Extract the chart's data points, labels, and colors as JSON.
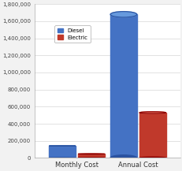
{
  "categories": [
    "Monthly Cost",
    "Annual Cost"
  ],
  "diesel_values": [
    140000,
    1680000
  ],
  "electric_values": [
    45000,
    530000
  ],
  "diesel_color": "#4472C4",
  "diesel_dark": "#2a52a0",
  "diesel_light": "#6699DD",
  "electric_color": "#C0392B",
  "electric_dark": "#8b0000",
  "electric_light": "#DD6655",
  "diesel_label": "Diesel",
  "electric_label": "Electric",
  "ylim": [
    0,
    1800000
  ],
  "yticks": [
    0,
    200000,
    400000,
    600000,
    800000,
    1000000,
    1200000,
    1400000,
    1600000,
    1800000
  ],
  "ytick_labels": [
    "0",
    "200,000",
    "400,000",
    "600,000",
    "800,000",
    "1,000,000",
    "1,200,000",
    "1,400,000",
    "1,600,000",
    "1,800,000"
  ],
  "background_color": "#F2F2F2",
  "plot_bg_color": "#FFFFFF",
  "bar_width": 0.28,
  "x_positions": [
    0.35,
    1.0
  ]
}
